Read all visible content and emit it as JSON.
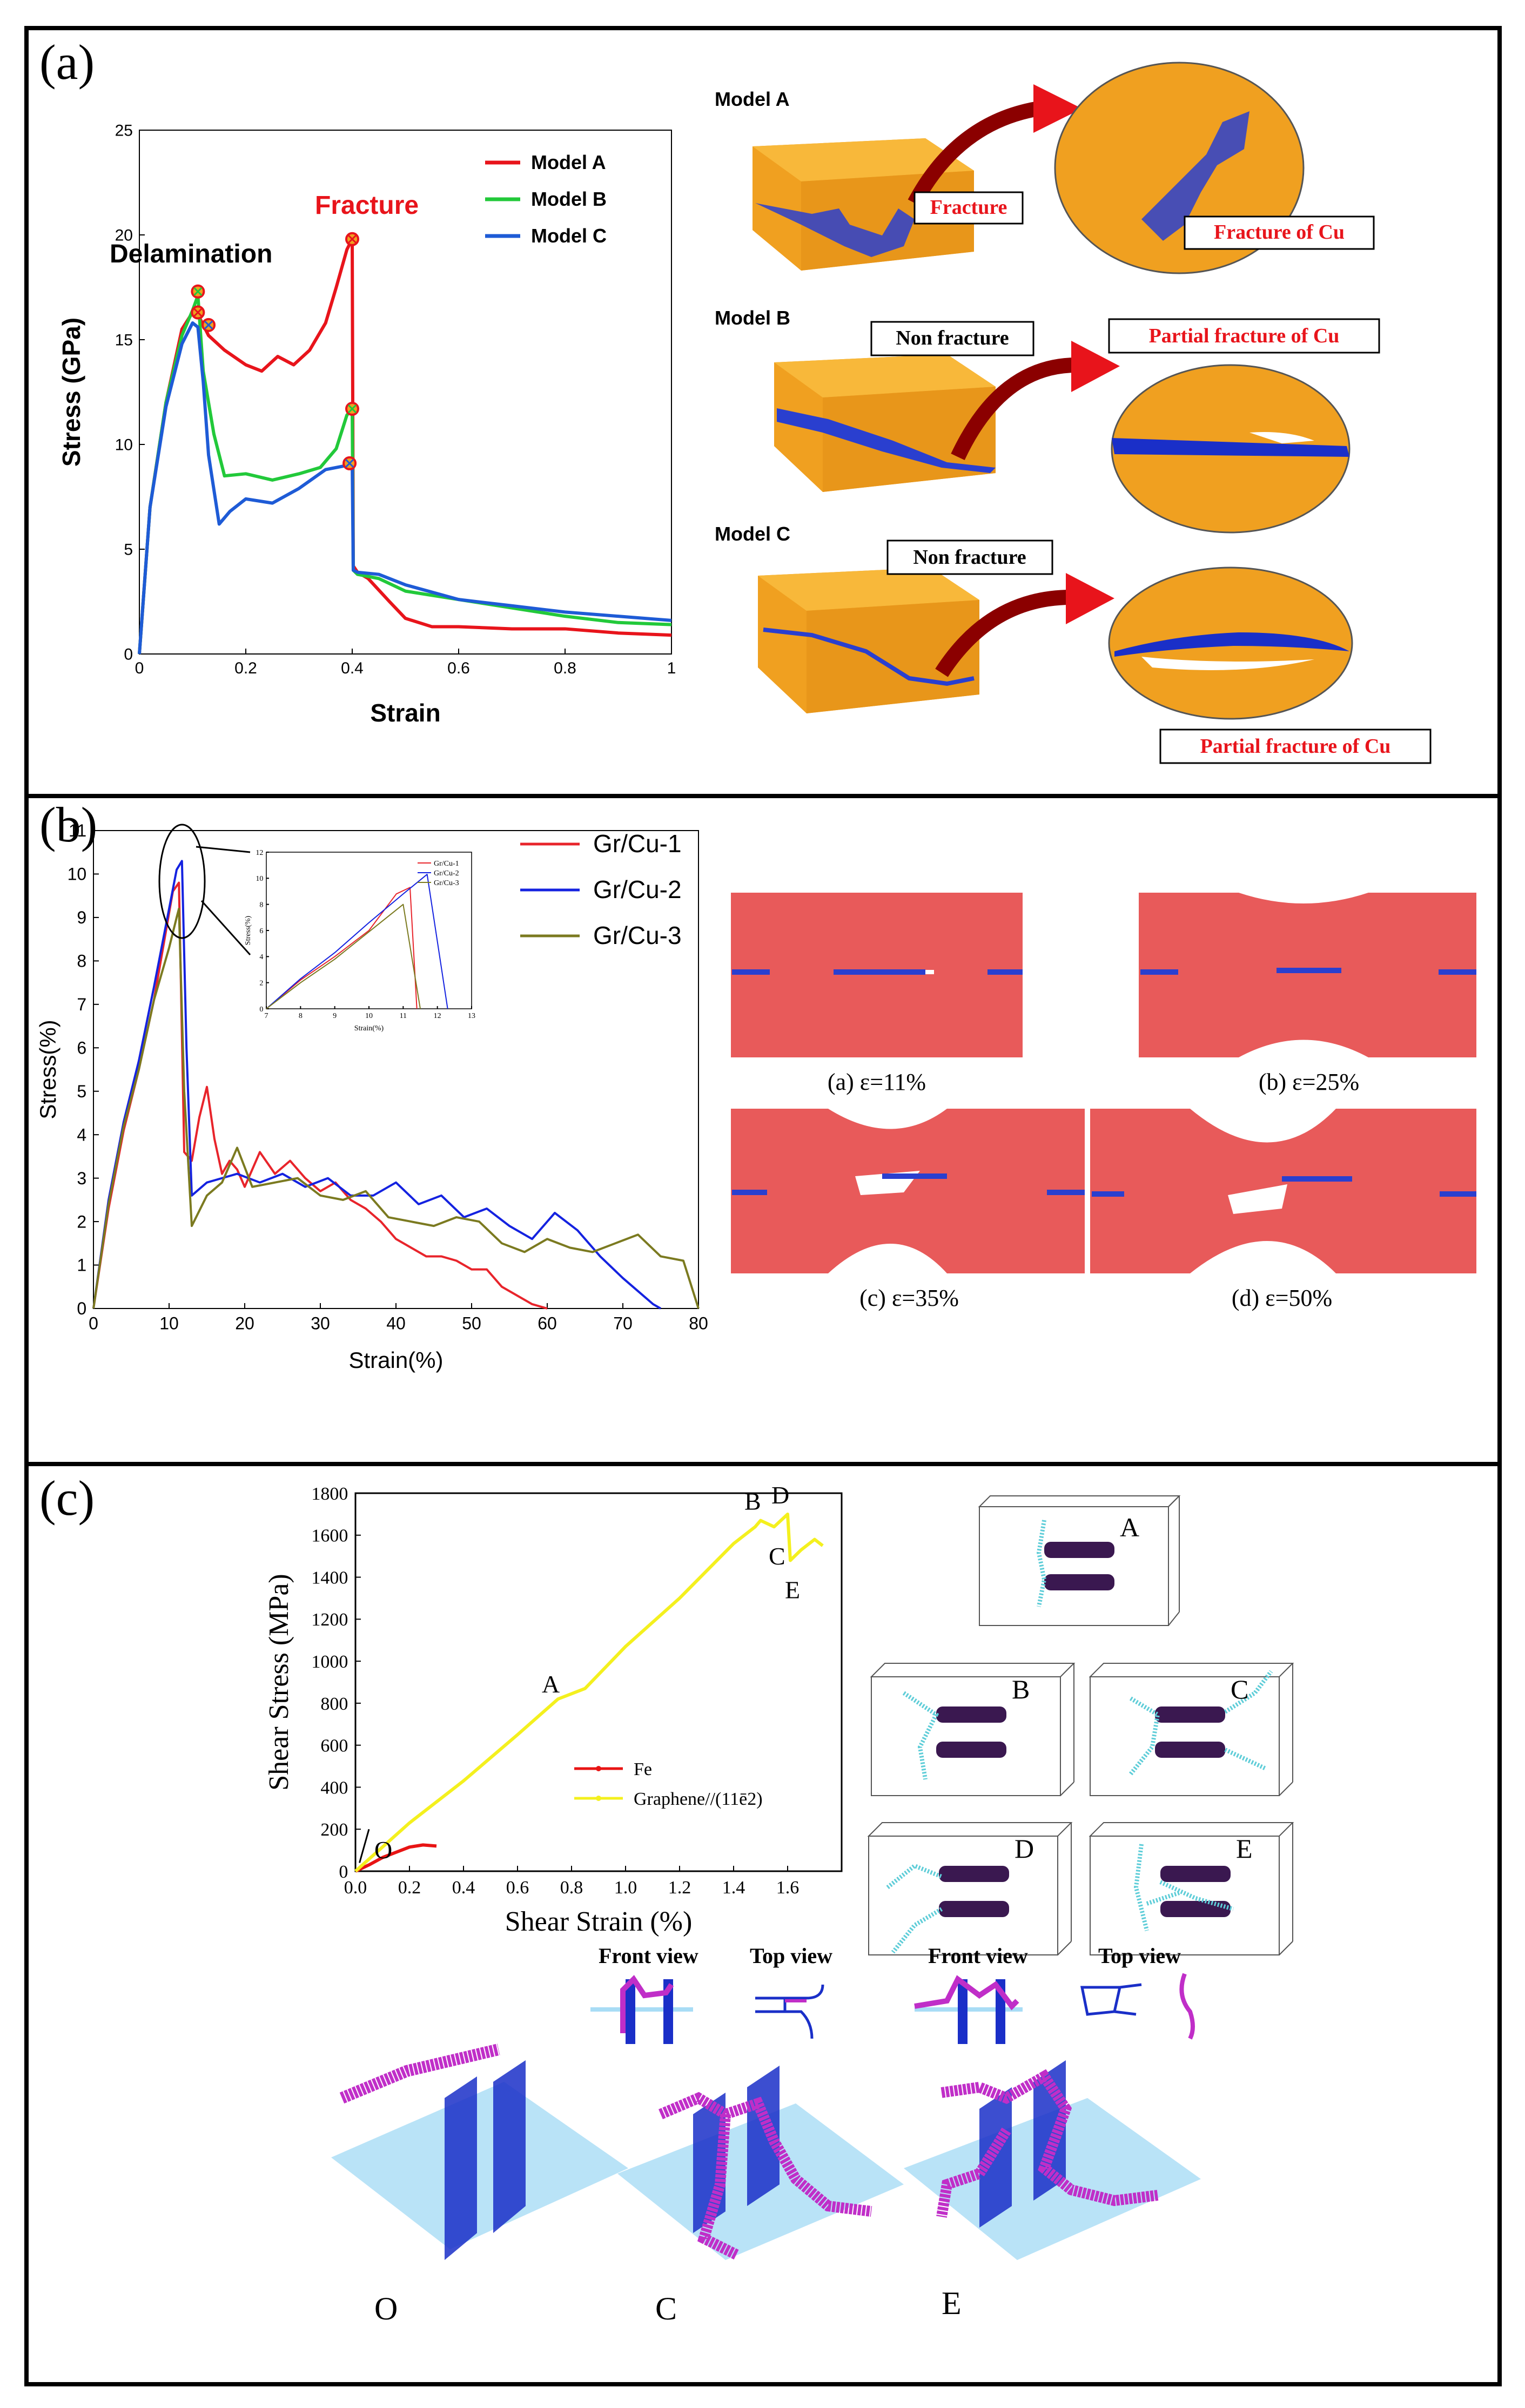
{
  "panel_labels": {
    "a": "(a)",
    "b": "(b)",
    "c": "(c)"
  },
  "colors": {
    "model_a": "#e8141b",
    "model_b": "#22c93a",
    "model_c": "#1e5bd6",
    "cu": "#f0a020",
    "gr": "#1a2fc8",
    "gr_cu_1": "#e8242b",
    "gr_cu_2": "#1422e0",
    "gr_cu_3": "#7b7a20",
    "fe": "#e81414",
    "graphene": "#f4f01e",
    "cu_slab": "#e85a5a",
    "atom_blue": "#2a3fcf",
    "dislocation": "#5ecdd8",
    "vacancy": "#3a1850",
    "magenta": "#c02ec8",
    "plane": "#a8dcf5"
  },
  "panel_a": {
    "annotations": {
      "delamination": "Delamination",
      "fracture": "Fracture"
    },
    "models": [
      {
        "name": "Model A",
        "callout_main": "Fracture",
        "callout_zoom": "Fracture of Cu"
      },
      {
        "name": "Model B",
        "callout_main": "Non fracture",
        "callout_zoom": "Partial fracture of Cu"
      },
      {
        "name": "Model C",
        "callout_main": "Non fracture",
        "callout_zoom": "Partial fracture of Cu"
      }
    ]
  },
  "panel_b": {
    "captions": [
      "(a) ε=11%",
      "(b) ε=25%",
      "(c) ε=35%",
      "(d) ε=50%"
    ]
  },
  "panel_c": {
    "snapshot_labels": [
      "A",
      "B",
      "C",
      "D",
      "E"
    ],
    "view_labels": [
      "Front view",
      "Top view",
      "Front view",
      "Top view"
    ],
    "bottom_labels": [
      "O",
      "C",
      "E"
    ]
  },
  "chart_data": [
    {
      "type": "line",
      "title": "",
      "xlabel": "Strain",
      "ylabel": "Stress (GPa)",
      "xlim": [
        0,
        1
      ],
      "ylim": [
        0,
        25
      ],
      "xticks": [
        0,
        0.2,
        0.4,
        0.6,
        0.8,
        1
      ],
      "xtick_labels": [
        "0",
        "0.2",
        "0.4",
        "0.6",
        "0.8",
        "1"
      ],
      "yticks": [
        0,
        5,
        10,
        15,
        20,
        25
      ],
      "legend_position": "top-right",
      "series": [
        {
          "name": "Model A",
          "color_key": "model_a",
          "x": [
            0,
            0.02,
            0.05,
            0.08,
            0.1,
            0.11,
            0.13,
            0.16,
            0.2,
            0.23,
            0.26,
            0.29,
            0.32,
            0.35,
            0.37,
            0.39,
            0.4,
            0.402,
            0.41,
            0.43,
            0.47,
            0.5,
            0.55,
            0.6,
            0.7,
            0.8,
            0.9,
            1.0
          ],
          "y": [
            0,
            7,
            12,
            15.5,
            16.3,
            16.2,
            15.2,
            14.5,
            13.8,
            13.5,
            14.2,
            13.8,
            14.5,
            15.8,
            17.5,
            19.3,
            19.8,
            4.2,
            3.9,
            3.6,
            2.5,
            1.7,
            1.3,
            1.3,
            1.2,
            1.2,
            1.0,
            0.9
          ]
        },
        {
          "name": "Model B",
          "color_key": "model_b",
          "x": [
            0,
            0.02,
            0.05,
            0.08,
            0.1,
            0.11,
            0.12,
            0.14,
            0.16,
            0.2,
            0.25,
            0.3,
            0.34,
            0.37,
            0.39,
            0.4,
            0.402,
            0.41,
            0.45,
            0.5,
            0.6,
            0.7,
            0.8,
            0.9,
            1.0
          ],
          "y": [
            0,
            7,
            12,
            15.2,
            16.4,
            17.1,
            13.5,
            10.5,
            8.5,
            8.6,
            8.3,
            8.6,
            8.9,
            9.8,
            11.4,
            11.7,
            4.0,
            3.8,
            3.6,
            3.0,
            2.6,
            2.2,
            1.8,
            1.5,
            1.4
          ]
        },
        {
          "name": "Model C",
          "color_key": "model_c",
          "x": [
            0,
            0.02,
            0.05,
            0.08,
            0.1,
            0.11,
            0.12,
            0.13,
            0.15,
            0.17,
            0.2,
            0.25,
            0.3,
            0.35,
            0.39,
            0.4,
            0.402,
            0.41,
            0.45,
            0.5,
            0.6,
            0.7,
            0.8,
            0.9,
            1.0
          ],
          "y": [
            0,
            7,
            11.8,
            14.8,
            15.8,
            15.6,
            13,
            9.5,
            6.2,
            6.8,
            7.4,
            7.2,
            7.9,
            8.8,
            9.0,
            9.2,
            4.0,
            3.9,
            3.8,
            3.3,
            2.6,
            2.3,
            2.0,
            1.8,
            1.6
          ]
        }
      ],
      "markers": [
        {
          "series": "Model A",
          "x": 0.11,
          "y": 16.3
        },
        {
          "series": "Model B",
          "x": 0.11,
          "y": 17.3
        },
        {
          "series": "Model C",
          "x": 0.13,
          "y": 15.7
        },
        {
          "series": "Model A",
          "x": 0.4,
          "y": 19.8
        },
        {
          "series": "Model B",
          "x": 0.4,
          "y": 11.7
        },
        {
          "series": "Model C",
          "x": 0.395,
          "y": 9.1
        }
      ]
    },
    {
      "type": "line",
      "title": "",
      "xlabel": "Strain(%)",
      "ylabel": "Stress(%)",
      "xlim": [
        0,
        80
      ],
      "ylim": [
        0,
        11
      ],
      "xticks": [
        0,
        10,
        20,
        30,
        40,
        50,
        60,
        70,
        80
      ],
      "yticks": [
        0,
        1,
        2,
        3,
        4,
        5,
        6,
        7,
        8,
        9,
        10,
        11
      ],
      "legend_position": "top-right",
      "series": [
        {
          "name": "Gr/Cu-1",
          "color_key": "gr_cu_1",
          "x": [
            0,
            2,
            4,
            6,
            8,
            9.5,
            10.5,
            11.3,
            12,
            13,
            14,
            15,
            16,
            17,
            18,
            19,
            20,
            22,
            24,
            26,
            28,
            30,
            32,
            34,
            36,
            38,
            40,
            42,
            44,
            46,
            48,
            50,
            52,
            54,
            56,
            58,
            60
          ],
          "y": [
            0,
            2.3,
            4.1,
            5.5,
            7.1,
            8.6,
            9.6,
            9.8,
            3.6,
            3.4,
            4.4,
            5.1,
            3.9,
            3.1,
            3.4,
            3.2,
            2.8,
            3.6,
            3.1,
            3.4,
            3.0,
            2.7,
            2.9,
            2.5,
            2.3,
            2.0,
            1.6,
            1.4,
            1.2,
            1.2,
            1.1,
            0.9,
            0.9,
            0.5,
            0.3,
            0.1,
            0
          ]
        },
        {
          "name": "Gr/Cu-2",
          "color_key": "gr_cu_2",
          "x": [
            0,
            2,
            4,
            6,
            8,
            10,
            11,
            11.7,
            12.3,
            13,
            15,
            17,
            19,
            22,
            25,
            28,
            31,
            34,
            37,
            40,
            43,
            46,
            49,
            52,
            55,
            58,
            61,
            64,
            67,
            70,
            72,
            74,
            75
          ],
          "y": [
            0,
            2.5,
            4.3,
            5.7,
            7.4,
            9.2,
            10.1,
            10.3,
            6.0,
            2.6,
            2.9,
            3.0,
            3.1,
            2.9,
            3.1,
            2.8,
            3.0,
            2.6,
            2.6,
            2.9,
            2.4,
            2.6,
            2.1,
            2.3,
            1.9,
            1.6,
            2.2,
            1.8,
            1.2,
            0.7,
            0.4,
            0.1,
            0
          ]
        },
        {
          "name": "Gr/Cu-3",
          "color_key": "gr_cu_3",
          "x": [
            0,
            2,
            4,
            6,
            8,
            10,
            11,
            11.3,
            12,
            13,
            15,
            17,
            19,
            21,
            24,
            27,
            30,
            33,
            36,
            39,
            42,
            45,
            48,
            51,
            54,
            57,
            60,
            63,
            66,
            69,
            72,
            75,
            78,
            80
          ],
          "y": [
            0,
            2.4,
            4.2,
            5.5,
            7.1,
            8.3,
            9.0,
            9.2,
            5.0,
            1.9,
            2.6,
            2.9,
            3.7,
            2.8,
            2.9,
            3.0,
            2.6,
            2.5,
            2.7,
            2.1,
            2.0,
            1.9,
            2.1,
            2.0,
            1.5,
            1.3,
            1.6,
            1.4,
            1.3,
            1.5,
            1.7,
            1.2,
            1.1,
            0
          ]
        }
      ]
    },
    {
      "type": "line",
      "title": "",
      "inset": true,
      "xlabel": "Strain(%)",
      "ylabel": "Stress(%)",
      "xlim": [
        7,
        13
      ],
      "ylim": [
        0,
        12
      ],
      "xticks": [
        7,
        8,
        9,
        10,
        11,
        12,
        13
      ],
      "yticks": [
        0,
        2,
        4,
        6,
        8,
        10,
        12
      ],
      "legend_position": "top-right",
      "series": [
        {
          "name": "Gr/Cu-1",
          "color_key": "gr_cu_1",
          "x": [
            7,
            8,
            9,
            10,
            10.8,
            11.2,
            11.4
          ],
          "y": [
            0,
            2.2,
            4.0,
            6.0,
            8.8,
            9.3,
            0
          ]
        },
        {
          "name": "Gr/Cu-2",
          "color_key": "gr_cu_2",
          "x": [
            7,
            8,
            9,
            10,
            11,
            11.7,
            12.3
          ],
          "y": [
            0,
            2.3,
            4.3,
            6.6,
            8.8,
            10.3,
            0
          ]
        },
        {
          "name": "Gr/Cu-3",
          "color_key": "gr_cu_3",
          "x": [
            7,
            8,
            9,
            10,
            11,
            11.5
          ],
          "y": [
            0,
            2.0,
            3.8,
            5.9,
            8.0,
            0
          ]
        }
      ]
    },
    {
      "type": "line",
      "title": "",
      "xlabel": "Shear Strain (%)",
      "ylabel": "Shear Stress (MPa)",
      "xlim": [
        0,
        1.8
      ],
      "ylim": [
        0,
        1800
      ],
      "xticks": [
        0,
        0.2,
        0.4,
        0.6,
        0.8,
        1.0,
        1.2,
        1.4,
        1.6
      ],
      "xtick_labels": [
        "0.0",
        "0.2",
        "0.4",
        "0.6",
        "0.8",
        "1.0",
        "1.2",
        "1.4",
        "1.6"
      ],
      "yticks": [
        0,
        200,
        400,
        600,
        800,
        1000,
        1200,
        1400,
        1600,
        1800
      ],
      "legend_position": "bottom-center",
      "series": [
        {
          "name": "Fe",
          "color_key": "fe",
          "x": [
            0,
            0.05,
            0.1,
            0.15,
            0.2,
            0.25,
            0.3
          ],
          "y": [
            0,
            30,
            65,
            90,
            115,
            125,
            120
          ]
        },
        {
          "name": "Graphene//(11ē2)",
          "color_key": "graphene",
          "x": [
            0,
            0.2,
            0.4,
            0.6,
            0.75,
            0.85,
            1.0,
            1.2,
            1.4,
            1.48,
            1.5,
            1.55,
            1.6,
            1.61,
            1.65,
            1.7,
            1.73
          ],
          "y": [
            0,
            230,
            430,
            650,
            820,
            870,
            1070,
            1300,
            1560,
            1640,
            1670,
            1640,
            1700,
            1480,
            1530,
            1580,
            1550
          ]
        }
      ],
      "point_labels": [
        {
          "text": "O",
          "x": 0.03,
          "y": 10
        },
        {
          "text": "A",
          "x": 0.75,
          "y": 800
        },
        {
          "text": "B",
          "x": 1.5,
          "y": 1670
        },
        {
          "text": "C",
          "x": 1.55,
          "y": 1640
        },
        {
          "text": "D",
          "x": 1.6,
          "y": 1700
        },
        {
          "text": "E",
          "x": 1.61,
          "y": 1480
        }
      ]
    }
  ]
}
